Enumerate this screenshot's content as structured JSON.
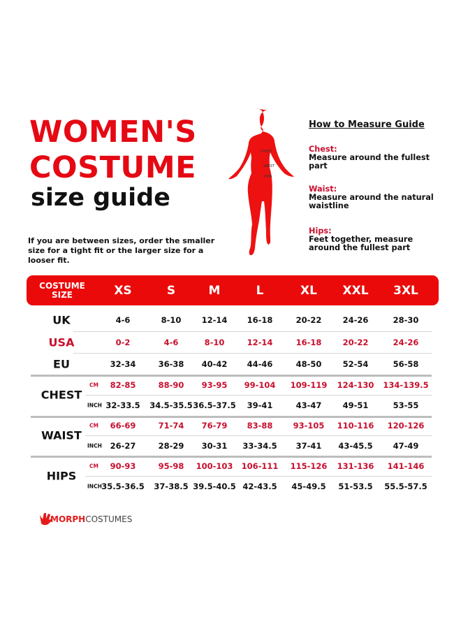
{
  "title_line1": "WOMEN'S",
  "title_line2": "COSTUME",
  "subtitle": "size guide",
  "note": "If you are between sizes, order the smaller size for a tight fit or the larger size for a looser fit.",
  "figure_labels": {
    "chest": "CHEST",
    "waist": "WAIST",
    "hips": "HIPS"
  },
  "guide": {
    "title": "How to Measure Guide",
    "items": [
      {
        "heading": "Chest:",
        "text": "Measure around the fullest part"
      },
      {
        "heading": "Waist:",
        "text": "Measure around the natural waistline"
      },
      {
        "heading": "Hips:",
        "text": "Feet together, measure around the fullest part"
      }
    ]
  },
  "table": {
    "header_label": "COSTUME SIZE",
    "sizes": [
      "XS",
      "S",
      "M",
      "L",
      "XL",
      "XXL",
      "3XL"
    ],
    "rows": [
      {
        "label": "UK",
        "unit": "",
        "red": false,
        "values": [
          "4-6",
          "8-10",
          "12-14",
          "16-18",
          "20-22",
          "24-26",
          "28-30"
        ]
      },
      {
        "label": "USA",
        "unit": "",
        "red": true,
        "values": [
          "0-2",
          "4-6",
          "8-10",
          "12-14",
          "16-18",
          "20-22",
          "24-26"
        ]
      },
      {
        "label": "EU",
        "unit": "",
        "red": false,
        "values": [
          "32-34",
          "36-38",
          "40-42",
          "44-46",
          "48-50",
          "52-54",
          "56-58"
        ]
      },
      {
        "label": "CHEST",
        "unit": "CM",
        "red": true,
        "values": [
          "82-85",
          "88-90",
          "93-95",
          "99-104",
          "109-119",
          "124-130",
          "134-139.5"
        ]
      },
      {
        "label": "",
        "unit": "INCH",
        "red": false,
        "values": [
          "32-33.5",
          "34.5-35.5",
          "36.5-37.5",
          "39-41",
          "43-47",
          "49-51",
          "53-55"
        ]
      },
      {
        "label": "WAIST",
        "unit": "CM",
        "red": true,
        "values": [
          "66-69",
          "71-74",
          "76-79",
          "83-88",
          "93-105",
          "110-116",
          "120-126"
        ]
      },
      {
        "label": "",
        "unit": "INCH",
        "red": false,
        "values": [
          "26-27",
          "28-29",
          "30-31",
          "33-34.5",
          "37-41",
          "43-45.5",
          "47-49"
        ]
      },
      {
        "label": "HIPS",
        "unit": "CM",
        "red": true,
        "values": [
          "90-93",
          "95-98",
          "100-103",
          "106-111",
          "115-126",
          "131-136",
          "141-146"
        ]
      },
      {
        "label": "",
        "unit": "INCH",
        "red": false,
        "values": [
          "35.5-36.5",
          "37-38.5",
          "39.5-40.5",
          "42-43.5",
          "45-49.5",
          "51-53.5",
          "55.5-57.5"
        ]
      }
    ]
  },
  "logo": {
    "part1": "MORPH",
    "part2": "COSTUMES"
  },
  "colors": {
    "accent": "#ea0a0a",
    "text_red": "#c8102e"
  }
}
